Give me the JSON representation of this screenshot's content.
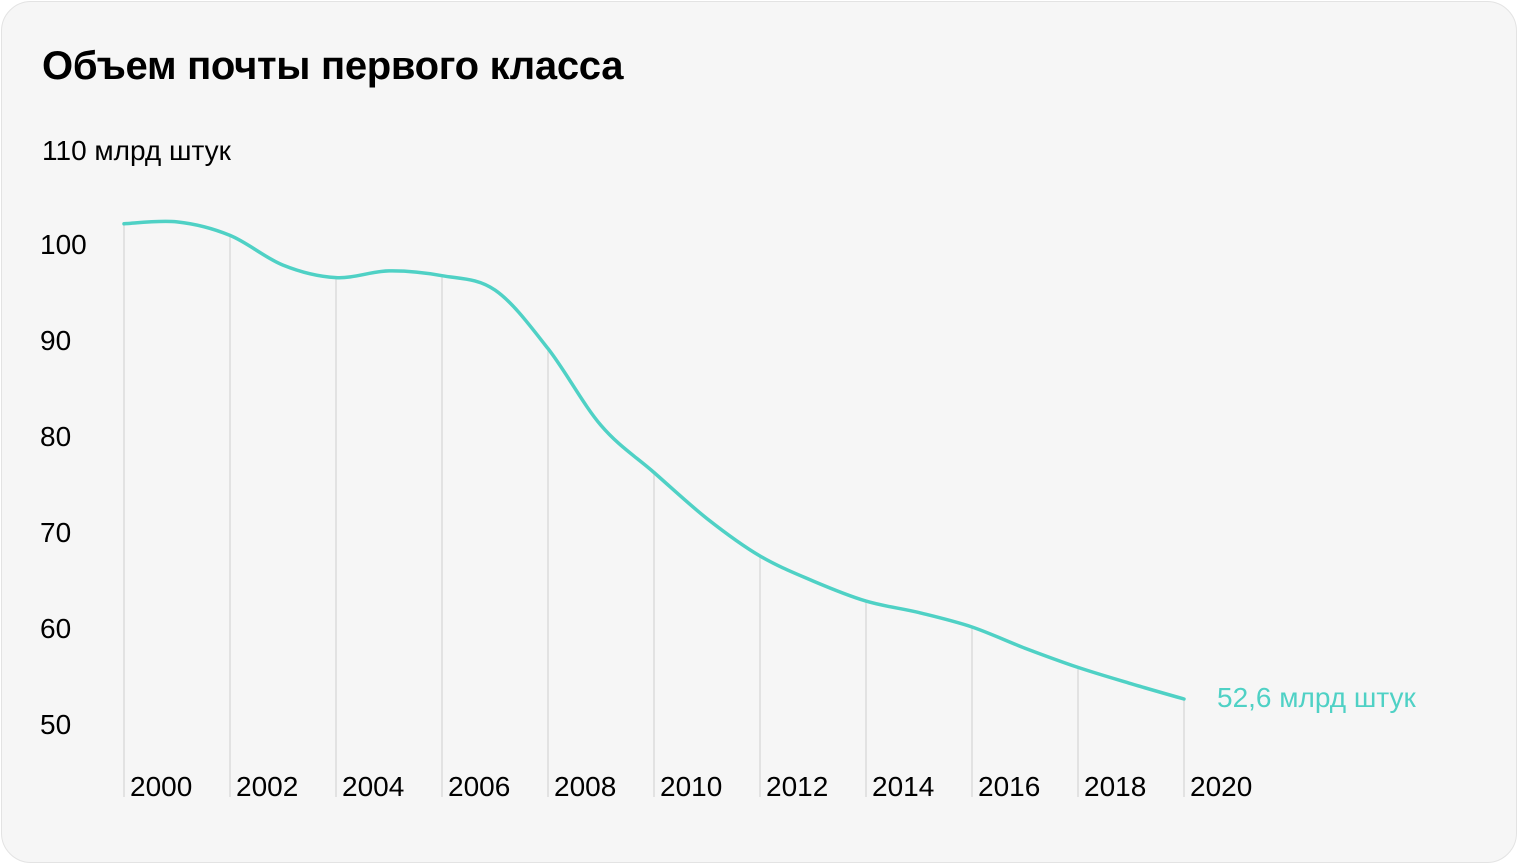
{
  "chart_data": {
    "type": "line",
    "title": "Объем почты первого класса",
    "ylabel": "110 млрд штук",
    "xlabel": "",
    "ylim": [
      50,
      110
    ],
    "y_ticks": [
      100,
      90,
      80,
      70,
      60,
      50
    ],
    "x_tick_labels": [
      "2000",
      "2002",
      "2004",
      "2006",
      "2008",
      "2010",
      "2012",
      "2014",
      "2016",
      "2018",
      "2020"
    ],
    "grid": "vertical",
    "series": [
      {
        "color": "#4fd1c5",
        "x": [
          2000,
          2001,
          2002,
          2003,
          2004,
          2005,
          2006,
          2007,
          2008,
          2009,
          2010,
          2011,
          2012,
          2013,
          2014,
          2015,
          2016,
          2017,
          2018,
          2019,
          2020
        ],
        "values": [
          102.1,
          102.3,
          100.9,
          97.8,
          96.5,
          97.2,
          96.7,
          95.2,
          89.1,
          81.1,
          76.2,
          71.4,
          67.5,
          64.9,
          62.8,
          61.6,
          60.1,
          57.9,
          55.9,
          54.2,
          52.6
        ]
      }
    ],
    "annotations": [
      {
        "text": "52,6 млрд штук",
        "x": 2020,
        "y": 52.6
      }
    ]
  }
}
